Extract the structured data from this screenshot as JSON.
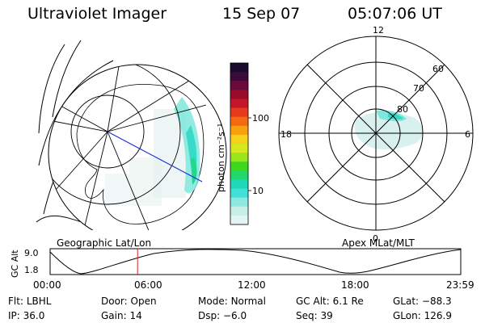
{
  "header": {
    "instrument": "Ultraviolet Imager",
    "date": "15 Sep 07",
    "time": "05:07:06 UT"
  },
  "colorbar": {
    "unit_label": "photon cm⁻²s⁻¹",
    "ticks": [
      "100",
      "10"
    ],
    "colors": [
      "#1a0a2e",
      "#3a0a3a",
      "#6a0a3a",
      "#9a0a2a",
      "#c4162a",
      "#e63a1e",
      "#f36a12",
      "#f7a010",
      "#f5d21a",
      "#d8e81e",
      "#9be41e",
      "#3dd81e",
      "#22d86a",
      "#1fd8b8",
      "#3fe0d8",
      "#8ee8e0",
      "#c8eeea",
      "#e4f4f2"
    ]
  },
  "left_panel": {
    "label": "Geographic Lat/Lon"
  },
  "right_panel": {
    "label": "Apex MLat/MLT",
    "mlt_labels": {
      "top": "12",
      "bottom": "0",
      "left": "18",
      "right": "6"
    },
    "lat_labels": [
      "60",
      "70",
      "80"
    ]
  },
  "altitude_plot": {
    "ylabel": "GC Alt",
    "yticks": [
      "9.0",
      "1.8"
    ],
    "xticks": [
      "00:00",
      "06:00",
      "12:00",
      "18:00",
      "23:59"
    ],
    "marker_time_fraction": 0.213
  },
  "info": {
    "filter_label": "Flt:",
    "filter_value": "LBHL",
    "door_label": "Door:",
    "door_value": "Open",
    "mode_label": "Mode:",
    "mode_value": "Normal",
    "gcalt_label": "GC Alt:",
    "gcalt_value": "6.1 Re",
    "glat_label": "GLat:",
    "glat_value": "−88.3",
    "ip_label": "IP:",
    "ip_value": "36.0",
    "gain_label": "Gain:",
    "gain_value": "14",
    "dsp_label": "Dsp:",
    "dsp_value": "−6.0",
    "seq_label": "Seq:",
    "seq_value": "39",
    "glon_label": "GLon:",
    "glon_value": "126.9"
  }
}
